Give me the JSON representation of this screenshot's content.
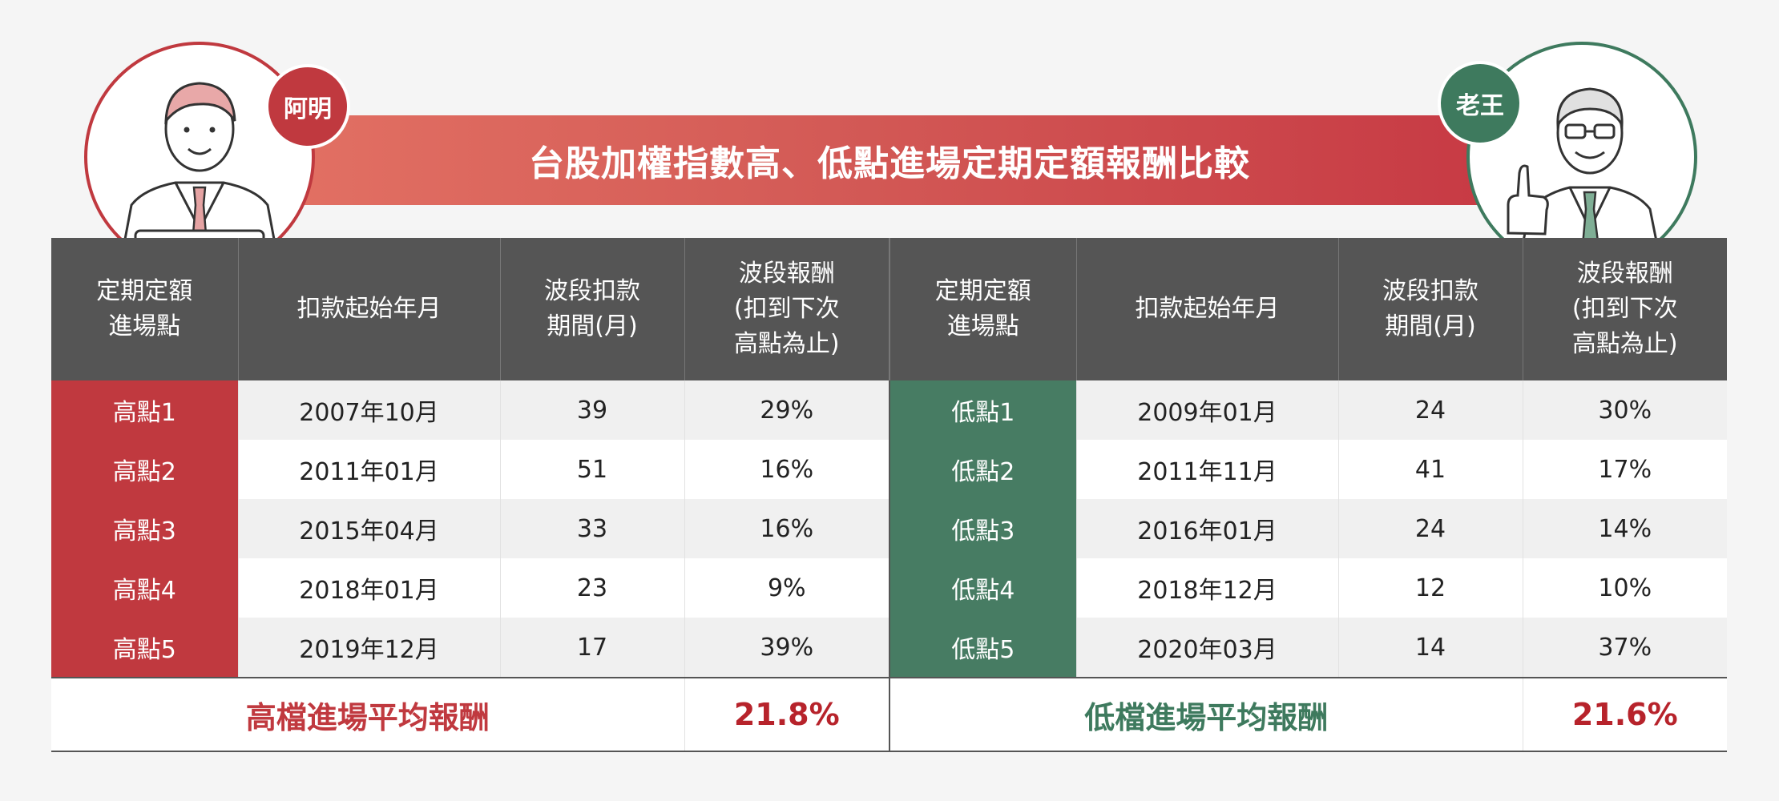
{
  "title": "台股加權指數高、低點進場定期定額報酬比較",
  "left_person": {
    "name": "阿明",
    "color": "#c0393f"
  },
  "right_person": {
    "name": "老王",
    "color": "#3e7a5e"
  },
  "headers": [
    "定期定額\n進場點",
    "扣款起始年月",
    "波段扣款\n期間(月)",
    "波段報酬\n(扣到下次\n高點為止)",
    "定期定額\n進場點",
    "扣款起始年月",
    "波段扣款\n期間(月)",
    "波段報酬\n(扣到下次\n高點為止)"
  ],
  "rows": [
    {
      "high": [
        "高點1",
        "2007年10月",
        "39",
        "29%"
      ],
      "low": [
        "低點1",
        "2009年01月",
        "24",
        "30%"
      ]
    },
    {
      "high": [
        "高點2",
        "2011年01月",
        "51",
        "16%"
      ],
      "low": [
        "低點2",
        "2011年11月",
        "41",
        "17%"
      ]
    },
    {
      "high": [
        "高點3",
        "2015年04月",
        "33",
        "16%"
      ],
      "low": [
        "低點3",
        "2016年01月",
        "24",
        "14%"
      ]
    },
    {
      "high": [
        "高點4",
        "2018年01月",
        "23",
        "9%"
      ],
      "low": [
        "低點4",
        "2018年12月",
        "12",
        "10%"
      ]
    },
    {
      "high": [
        "高點5",
        "2019年12月",
        "17",
        "39%"
      ],
      "low": [
        "低點5",
        "2020年03月",
        "14",
        "37%"
      ]
    }
  ],
  "summary": {
    "high_label": "高檔進場平均報酬",
    "high_value": "21.8%",
    "low_label": "低檔進場平均報酬",
    "low_value": "21.6%"
  },
  "colors": {
    "high": "#c0393f",
    "low": "#477c63",
    "header_bg": "#555555",
    "accent_value": "#b7232b"
  }
}
